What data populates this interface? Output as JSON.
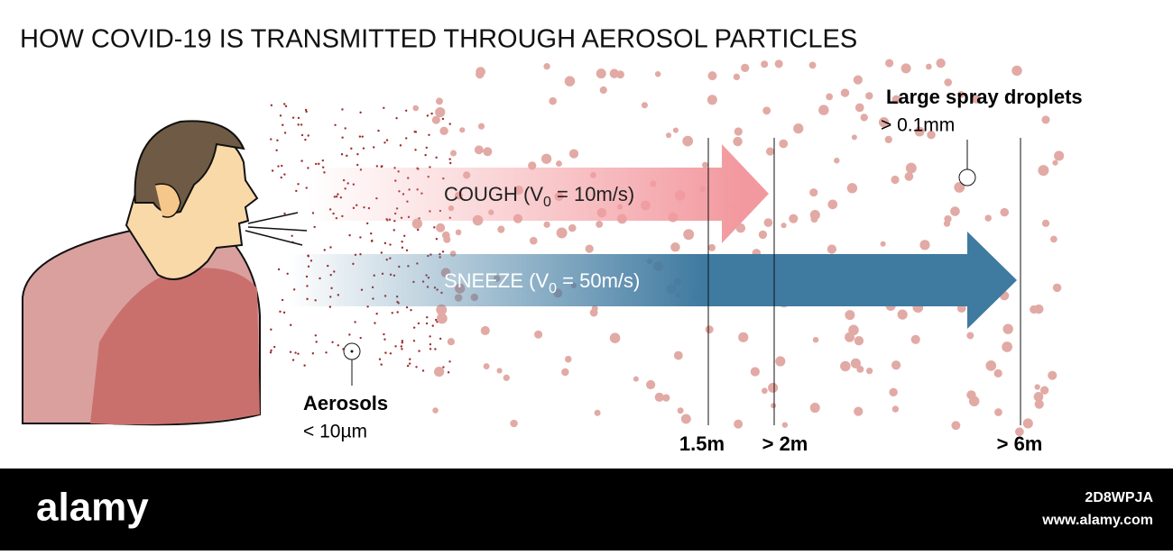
{
  "title": "HOW COVID-19 IS TRANSMITTED THROUGH AEROSOL PARTICLES",
  "large_droplets": {
    "label": "Large spray droplets",
    "size": "> 0.1mm"
  },
  "aerosols": {
    "label": "Aerosols",
    "size": "< 10µm"
  },
  "cough": {
    "prefix": "COUGH  (V",
    "subscript": "0",
    "suffix": " = 10m/s)"
  },
  "sneeze": {
    "prefix": "SNEEZE  (V",
    "subscript": "0",
    "suffix": " = 50m/s)"
  },
  "distances": [
    "1.5m",
    "> 2m",
    "> 6m"
  ],
  "footer": {
    "brand": "alamy",
    "image_id": "2D8WPJA",
    "url": "www.alamy.com"
  }
}
